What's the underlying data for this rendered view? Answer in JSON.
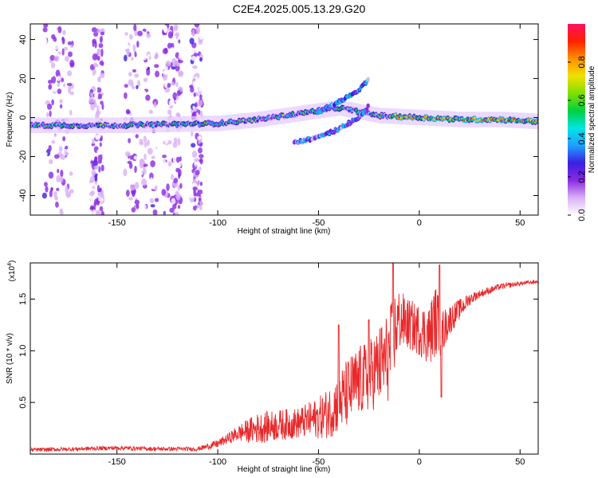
{
  "figure": {
    "title": "C2E4.2025.005.13.29.G20"
  },
  "chart_data": [
    {
      "type": "heatmap",
      "xlabel": "Height of straight line (km)",
      "ylabel": "Frequency (Hz)",
      "xlim": [
        -193,
        59
      ],
      "ylim": [
        -50,
        48
      ],
      "xticks": [
        -150,
        -100,
        -50,
        0,
        50
      ],
      "yticks": [
        -40,
        -20,
        0,
        20,
        40
      ],
      "colorbar": {
        "label": "Normalized spectral amplitude",
        "range": [
          0,
          1
        ],
        "ticks": [
          "0.0",
          "0.2",
          "0.4",
          "0.6",
          "0.8"
        ],
        "colors": [
          "#ffffff",
          "#d9b0f5",
          "#8a2be2",
          "#3a1fe0",
          "#1fa0ff",
          "#00e5e5",
          "#00d040",
          "#80e000",
          "#f0e000",
          "#ff9000",
          "#ff2000",
          "#ff1060"
        ]
      },
      "features": [
        {
          "name": "main trace",
          "x": [
            -193,
            -150,
            -100,
            -80,
            -60,
            -40,
            -20,
            0,
            20,
            40,
            59
          ],
          "freq": [
            -4,
            -4,
            -3,
            -1,
            2,
            5,
            1,
            0,
            -1,
            -1,
            -2
          ]
        },
        {
          "name": "upper branch",
          "x": [
            -50,
            -40,
            -30,
            -25
          ],
          "freq": [
            3,
            8,
            14,
            20
          ]
        },
        {
          "name": "lower branch",
          "x": [
            -62,
            -50,
            -40,
            -30,
            -25
          ],
          "freq": [
            -13,
            -10,
            -6,
            0,
            6
          ]
        }
      ]
    },
    {
      "type": "line",
      "xlabel": "Height of straight line (km)",
      "ylabel": "SNR (10 * v/v)",
      "y_multiplier": "(x10",
      "y_multiplier_exp": "4",
      "y_multiplier_close": ")",
      "xlim": [
        -193,
        59
      ],
      "ylim": [
        0,
        1.85
      ],
      "xticks": [
        -150,
        -100,
        -50,
        0,
        50
      ],
      "yticks": [
        "0.5",
        "1.0",
        "1.5"
      ],
      "series": [
        {
          "color": "#e8282a",
          "x": [
            -193,
            -170,
            -150,
            -130,
            -110,
            -100,
            -95,
            -90,
            -80,
            -70,
            -60,
            -50,
            -45,
            -40,
            -35,
            -30,
            -25,
            -20,
            -15,
            -12,
            -10,
            -5,
            0,
            5,
            8,
            10,
            12,
            15,
            20,
            25,
            30,
            40,
            50,
            59
          ],
          "values": [
            0.04,
            0.05,
            0.06,
            0.05,
            0.05,
            0.1,
            0.15,
            0.2,
            0.25,
            0.28,
            0.3,
            0.35,
            0.4,
            0.5,
            0.6,
            0.7,
            0.75,
            0.85,
            0.95,
            1.2,
            1.3,
            1.25,
            1.2,
            1.15,
            1.3,
            1.2,
            1.2,
            1.3,
            1.4,
            1.5,
            1.55,
            1.62,
            1.65,
            1.67
          ],
          "amplitude": [
            0.02,
            0.02,
            0.02,
            0.02,
            0.02,
            0.04,
            0.05,
            0.08,
            0.15,
            0.15,
            0.15,
            0.2,
            0.25,
            0.3,
            0.35,
            0.35,
            0.35,
            0.4,
            0.45,
            0.4,
            0.3,
            0.25,
            0.25,
            0.3,
            0.35,
            0.3,
            0.2,
            0.15,
            0.1,
            0.06,
            0.04,
            0.03,
            0.02,
            0.02
          ],
          "peaks": [
            {
              "x": -13,
              "y": 1.88
            },
            {
              "x": 10,
              "y": 1.83
            },
            {
              "x": 11,
              "y": 0.55
            },
            {
              "x": -40,
              "y": 1.25
            },
            {
              "x": -25,
              "y": 1.3
            }
          ]
        }
      ]
    }
  ]
}
